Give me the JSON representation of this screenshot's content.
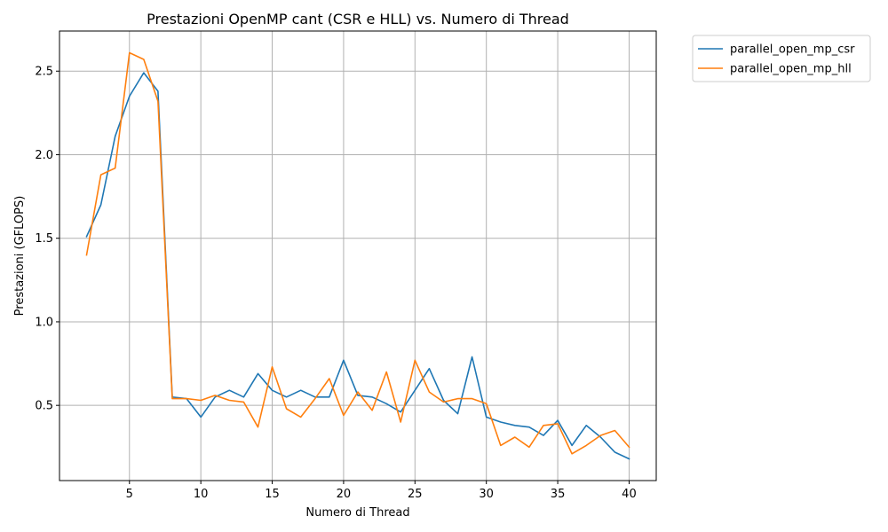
{
  "chart_data": {
    "type": "line",
    "title": "Prestazioni OpenMP cant (CSR e HLL) vs. Numero di Thread",
    "xlabel": "Numero di Thread",
    "ylabel": "Prestazioni (GFLOPS)",
    "xlim": [
      0.1,
      41.9
    ],
    "ylim": [
      0.05,
      2.74
    ],
    "xticks": [
      5,
      10,
      15,
      20,
      25,
      30,
      35,
      40
    ],
    "yticks": [
      0.5,
      1.0,
      1.5,
      2.0,
      2.5
    ],
    "ytick_labels": [
      "0.5",
      "1.0",
      "1.5",
      "2.0",
      "2.5"
    ],
    "grid": true,
    "legend_placement": "outside-top-right",
    "x": [
      2,
      3,
      4,
      5,
      6,
      7,
      8,
      9,
      10,
      11,
      12,
      13,
      14,
      15,
      16,
      17,
      18,
      19,
      20,
      21,
      22,
      23,
      24,
      25,
      26,
      27,
      28,
      29,
      30,
      31,
      32,
      33,
      34,
      35,
      36,
      37,
      38,
      39,
      40
    ],
    "series": [
      {
        "name": "parallel_open_mp_csr",
        "color": "#1f77b4",
        "values": [
          1.51,
          1.7,
          2.11,
          2.35,
          2.49,
          2.38,
          0.55,
          0.54,
          0.43,
          0.55,
          0.59,
          0.55,
          0.69,
          0.59,
          0.55,
          0.59,
          0.55,
          0.55,
          0.77,
          0.56,
          0.55,
          0.51,
          0.46,
          0.59,
          0.72,
          0.53,
          0.45,
          0.79,
          0.43,
          0.4,
          0.38,
          0.37,
          0.32,
          0.41,
          0.26,
          0.38,
          0.31,
          0.22,
          0.18
        ]
      },
      {
        "name": "parallel_open_mp_hll",
        "color": "#ff7f0e",
        "values": [
          1.4,
          1.88,
          1.92,
          2.61,
          2.57,
          2.32,
          0.54,
          0.54,
          0.53,
          0.56,
          0.53,
          0.52,
          0.37,
          0.73,
          0.48,
          0.43,
          0.54,
          0.66,
          0.44,
          0.58,
          0.47,
          0.7,
          0.4,
          0.77,
          0.58,
          0.52,
          0.54,
          0.54,
          0.51,
          0.26,
          0.31,
          0.25,
          0.38,
          0.39,
          0.21,
          0.26,
          0.32,
          0.35,
          0.25
        ]
      }
    ]
  }
}
